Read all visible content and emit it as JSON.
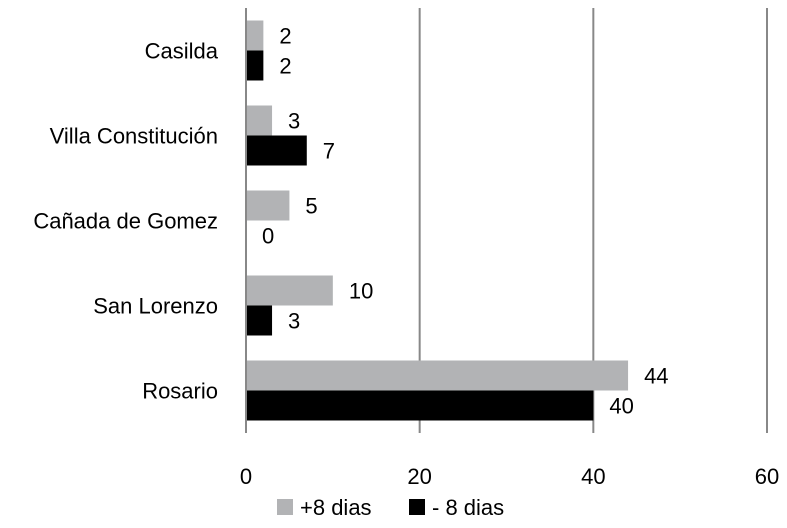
{
  "chart_data": {
    "type": "bar",
    "orientation": "horizontal",
    "categories": [
      "Casilda",
      "Villa Constitución",
      "Cañada de Gomez",
      "San Lorenzo",
      "Rosario"
    ],
    "series": [
      {
        "name": "+8 dias",
        "values": [
          2,
          3,
          5,
          10,
          44
        ],
        "color": "#b2b3b5"
      },
      {
        "name": "- 8 dias",
        "values": [
          2,
          7,
          0,
          3,
          40
        ],
        "color": "#000000"
      }
    ],
    "xlim": [
      0,
      60
    ],
    "xticks": [
      "0",
      "20",
      "40",
      "60"
    ],
    "grid": "vertical",
    "legend": {
      "placement": "bottom"
    },
    "title": "",
    "xlabel": "",
    "ylabel": ""
  }
}
